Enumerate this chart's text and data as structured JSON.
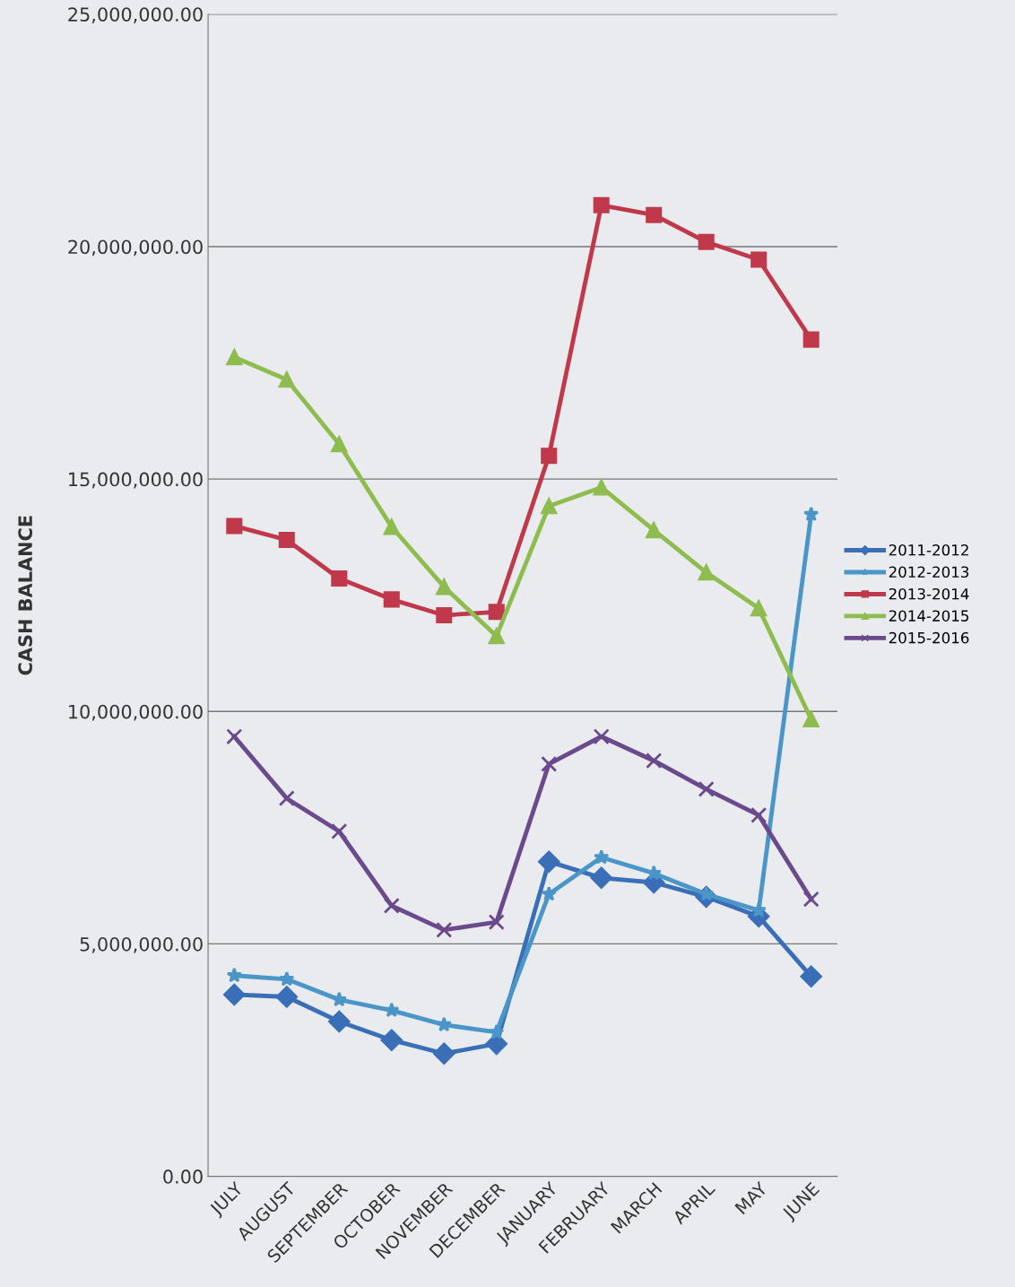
{
  "chart_data": {
    "type": "line",
    "ylabel": "CASH BALANCE",
    "categories": [
      "JULY",
      "AUGUST",
      "SEPTEMBER",
      "OCTOBER",
      "NOVEMBER",
      "DECEMBER",
      "JANUARY",
      "FEBRUARY",
      "MARCH",
      "APRIL",
      "MAY",
      "JUNE"
    ],
    "series": [
      {
        "name": "2011-2012",
        "color": "#3a6fb7",
        "marker": "diamond",
        "values": [
          3910000,
          3860000,
          3330000,
          2930000,
          2640000,
          2850000,
          6770000,
          6420000,
          6320000,
          6010000,
          5590000,
          4300000
        ]
      },
      {
        "name": "2012-2013",
        "color": "#4a96c8",
        "marker": "star",
        "values": [
          4320000,
          4240000,
          3800000,
          3570000,
          3260000,
          3100000,
          6070000,
          6860000,
          6520000,
          6070000,
          5720000,
          14240000
        ]
      },
      {
        "name": "2013-2014",
        "color": "#c0394b",
        "marker": "square",
        "values": [
          13990000,
          13690000,
          12860000,
          12410000,
          12070000,
          12140000,
          15500000,
          20890000,
          20680000,
          20100000,
          19720000,
          18000000
        ]
      },
      {
        "name": "2014-2015",
        "color": "#8fbc4f",
        "marker": "triangle",
        "values": [
          17620000,
          17140000,
          15750000,
          13970000,
          12680000,
          11620000,
          14420000,
          14820000,
          13900000,
          12990000,
          12220000,
          9830000
        ]
      },
      {
        "name": "2015-2016",
        "color": "#6a4a8c",
        "marker": "cross",
        "values": [
          9460000,
          8130000,
          7420000,
          5820000,
          5300000,
          5470000,
          8870000,
          9460000,
          8940000,
          8330000,
          7770000,
          5960000
        ]
      }
    ],
    "ylim": [
      0,
      25000000
    ],
    "yticks": [
      {
        "value": 0,
        "label": "0.00"
      },
      {
        "value": 5000000,
        "label": "5,000,000.00"
      },
      {
        "value": 10000000,
        "label": "10,000,000.00"
      },
      {
        "value": 15000000,
        "label": "15,000,000.00"
      },
      {
        "value": 20000000,
        "label": "20,000,000.00"
      },
      {
        "value": 25000000,
        "label": "25,000,000.00"
      }
    ],
    "grid": "y",
    "legend": "right",
    "line_style": "solid"
  }
}
